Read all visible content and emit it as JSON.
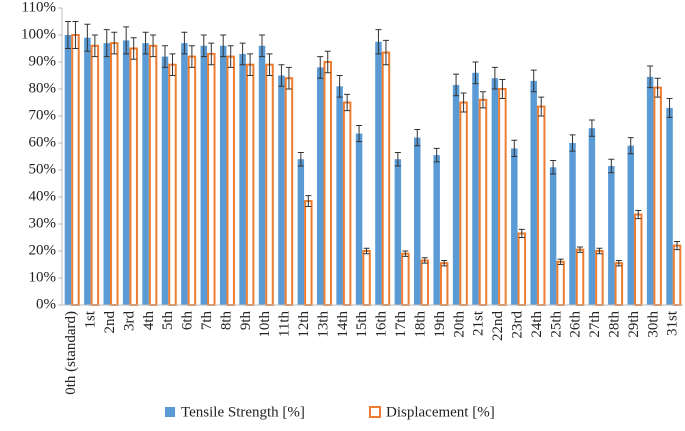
{
  "chart_data": {
    "type": "bar",
    "categories": [
      "0th (standard)",
      "1st",
      "2nd",
      "3rd",
      "4th",
      "5th",
      "6th",
      "7th",
      "8th",
      "9th",
      "10th",
      "11th",
      "12th",
      "13th",
      "14th",
      "15th",
      "16th",
      "17th",
      "18th",
      "19th",
      "20th",
      "21st",
      "22nd",
      "23rd",
      "24th",
      "25th",
      "26th",
      "27th",
      "28th",
      "29th",
      "30th",
      "31st"
    ],
    "series": [
      {
        "name": "Tensile Strength [%]",
        "color": "#5b9bd5",
        "fill": "#5b9bd5",
        "values": [
          100,
          99,
          97,
          98,
          97,
          92,
          97,
          96,
          96,
          93,
          96,
          85,
          54,
          88,
          81,
          63.5,
          97.5,
          54,
          62,
          55.5,
          81.5,
          86,
          84,
          58,
          83,
          51,
          60,
          65.5,
          51.5,
          59,
          84.5,
          73
        ],
        "errors": [
          5,
          5,
          5,
          5,
          4,
          4,
          4,
          4,
          4,
          4,
          4,
          4,
          2.5,
          4,
          4,
          3,
          4.5,
          2.5,
          3,
          2.5,
          4,
          4,
          4,
          3,
          4,
          2.5,
          3,
          3,
          2.5,
          3,
          4,
          3.5
        ]
      },
      {
        "name": "Displacement [%]",
        "color": "#ed7d31",
        "fill": "#ffffff",
        "values": [
          100,
          96,
          97,
          95,
          96,
          89,
          92,
          93,
          92,
          89,
          89,
          84,
          38.5,
          90,
          75,
          20,
          93.5,
          19,
          16.5,
          15.5,
          75,
          76,
          80,
          26.5,
          73.5,
          16,
          20.5,
          20,
          15.5,
          33.5,
          80.5,
          22
        ],
        "errors": [
          5,
          4,
          4,
          4,
          4,
          4,
          4,
          4,
          4,
          4,
          4,
          4,
          2,
          4,
          3,
          1,
          4.5,
          1,
          1,
          1,
          3.5,
          3,
          3.5,
          1.5,
          3.5,
          1,
          1,
          1,
          1,
          1.5,
          3.5,
          1.5
        ]
      }
    ],
    "ylim": [
      0,
      110
    ],
    "yticks": [
      {
        "value": 0,
        "label": "0%"
      },
      {
        "value": 10,
        "label": "10%"
      },
      {
        "value": 20,
        "label": "20%"
      },
      {
        "value": 30,
        "label": "30%"
      },
      {
        "value": 40,
        "label": "40%"
      },
      {
        "value": 50,
        "label": "50%"
      },
      {
        "value": 60,
        "label": "60%"
      },
      {
        "value": 70,
        "label": "70%"
      },
      {
        "value": 80,
        "label": "80%"
      },
      {
        "value": 90,
        "label": "90%"
      },
      {
        "value": 100,
        "label": "100%"
      },
      {
        "value": 110,
        "label": "110%"
      }
    ],
    "grid": false,
    "legend": "bottom"
  }
}
